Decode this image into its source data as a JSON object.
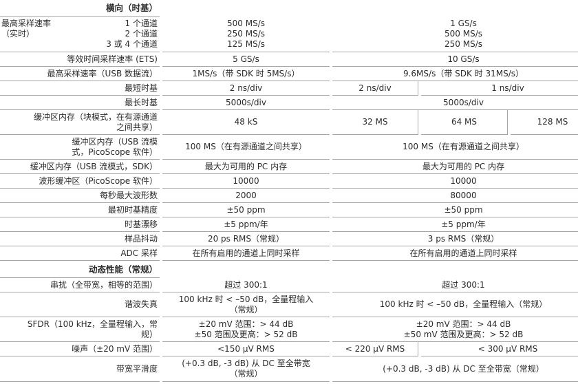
{
  "sections": [
    {
      "title": "横向（时基）",
      "rows": [
        {
          "label": "最高采样速率\n（实时）",
          "sublabel": "1 个通道\n2 个通道\n3 或 4 个通道",
          "cells": [
            {
              "text": "500 MS/s\n250 MS/s\n125 MS/s",
              "span": 1
            },
            {
              "text": "1 GS/s\n500 MS/s\n250 MS/s",
              "span": 3
            }
          ]
        },
        {
          "label": "等效时间采样速率 (ETS)",
          "cells": [
            {
              "text": "5 GS/s",
              "span": 1
            },
            {
              "text": "10 GS/s",
              "span": 3
            }
          ]
        },
        {
          "label": "最高采样速率（USB 数据流）",
          "cells": [
            {
              "text": "1MS/s（带 SDK 时 5MS/s）",
              "span": 1
            },
            {
              "text": "9.6MS/s（带 SDK 时 31MS/s）",
              "span": 3
            }
          ]
        },
        {
          "label": "最短时基",
          "cells": [
            {
              "text": "2 ns/div",
              "span": 1
            },
            {
              "text": "2 ns/div",
              "span": 1
            },
            {
              "text": "1 ns/div",
              "span": 2
            }
          ]
        },
        {
          "label": "最长时基",
          "cells": [
            {
              "text": "5000s/div",
              "span": 1
            },
            {
              "text": "5000s/div",
              "span": 3
            }
          ]
        },
        {
          "label": "缓冲区内存（块模式，在有源通道\n之间共享）",
          "cells": [
            {
              "text": "48 kS",
              "span": 1
            },
            {
              "text": "32 MS",
              "span": 1
            },
            {
              "text": "64 MS",
              "span": 1
            },
            {
              "text": "128 MS",
              "span": 1
            }
          ]
        },
        {
          "label": "缓冲区内存（USB 流模\n式，PicoScope 软件）",
          "cells": [
            {
              "text": "100 MS（在有源通道之间共享）",
              "span": 1
            },
            {
              "text": "100 MS（在有源通道之间共享）",
              "span": 3
            }
          ]
        },
        {
          "label": "缓冲区内存（USB 流模式，SDK）",
          "cells": [
            {
              "text": "最大为可用的 PC 内存",
              "span": 1
            },
            {
              "text": "最大为可用的 PC 内存",
              "span": 3
            }
          ]
        },
        {
          "label": "波形缓冲区（PicoScope 软件）",
          "cells": [
            {
              "text": "10000",
              "span": 1
            },
            {
              "text": "10000",
              "span": 3
            }
          ]
        },
        {
          "label": "每秒最大波形数",
          "cells": [
            {
              "text": "2000",
              "span": 1
            },
            {
              "text": "80000",
              "span": 3
            }
          ]
        },
        {
          "label": "最初时基精度",
          "cells": [
            {
              "text": "±50 ppm",
              "span": 1
            },
            {
              "text": "±50 ppm",
              "span": 3
            }
          ]
        },
        {
          "label": "时基漂移",
          "cells": [
            {
              "text": "±5 ppm/年",
              "span": 1
            },
            {
              "text": "±5 ppm/年",
              "span": 3
            }
          ]
        },
        {
          "label": "样品抖动",
          "cells": [
            {
              "text": "20 ps RMS（常规）",
              "span": 1
            },
            {
              "text": "3 ps RMS（常规）",
              "span": 3
            }
          ]
        },
        {
          "label": "ADC 采样",
          "cells": [
            {
              "text": "在所有启用的通道上同时采样",
              "span": 1
            },
            {
              "text": "在所有启用的通道上同时采样",
              "span": 3
            }
          ]
        }
      ]
    },
    {
      "title": "动态性能（常规）",
      "rows": [
        {
          "label": "串扰（全带宽，相等的范围）",
          "cells": [
            {
              "text": "超过 300:1",
              "span": 1
            },
            {
              "text": "超过 300:1",
              "span": 3
            }
          ]
        },
        {
          "label": "谐波失真",
          "cells": [
            {
              "text": "100 kHz 时 < –50 dB，全量程输入\n（常规）",
              "span": 1
            },
            {
              "text": "100 kHz 时 < –50 dB，全量程输入（常规）",
              "span": 3
            }
          ]
        },
        {
          "label": "SFDR（100 kHz，全量程输入，常\n规）",
          "cells": [
            {
              "text": "±20 mV 范围：> 44 dB\n±50  范围及更高：> 52 dB",
              "span": 1
            },
            {
              "text": "±20 mV 范围：> 44 dB\n±50 mV 范围及更高：> 52 dB",
              "span": 3
            }
          ]
        },
        {
          "label": "噪声（±20 mV 范围）",
          "cells": [
            {
              "text": "<150 µV RMS",
              "span": 1
            },
            {
              "text": "< 220 µV RMS",
              "span": 1
            },
            {
              "text": "< 300 µV RMS",
              "span": 2
            }
          ]
        },
        {
          "label": "带宽平滑度",
          "cells": [
            {
              "text": "(+0.3 dB, -3 dB) 从 DC 至全带宽\n（常规）",
              "span": 1
            },
            {
              "text": "(+0.3 dB, -3 dB) 从 DC 至全带宽（常规）",
              "span": 3
            }
          ]
        }
      ]
    }
  ]
}
